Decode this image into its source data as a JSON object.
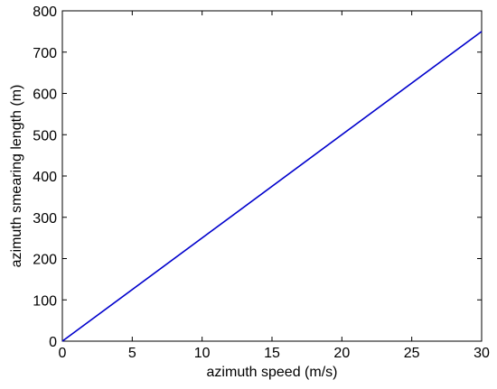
{
  "chart_data": {
    "type": "line",
    "title": "",
    "xlabel": "azimuth speed (m/s)",
    "ylabel": "azimuth smearing length (m)",
    "xlim": [
      0,
      30
    ],
    "ylim": [
      0,
      800
    ],
    "xticks": [
      "0",
      "5",
      "10",
      "15",
      "20",
      "25",
      "30"
    ],
    "yticks": [
      "0",
      "100",
      "200",
      "300",
      "400",
      "500",
      "600",
      "700",
      "800"
    ],
    "grid": false,
    "legend": "none",
    "series": [
      {
        "color": "#0000cc",
        "x": [
          0,
          30
        ],
        "y": [
          0,
          750
        ]
      }
    ]
  }
}
